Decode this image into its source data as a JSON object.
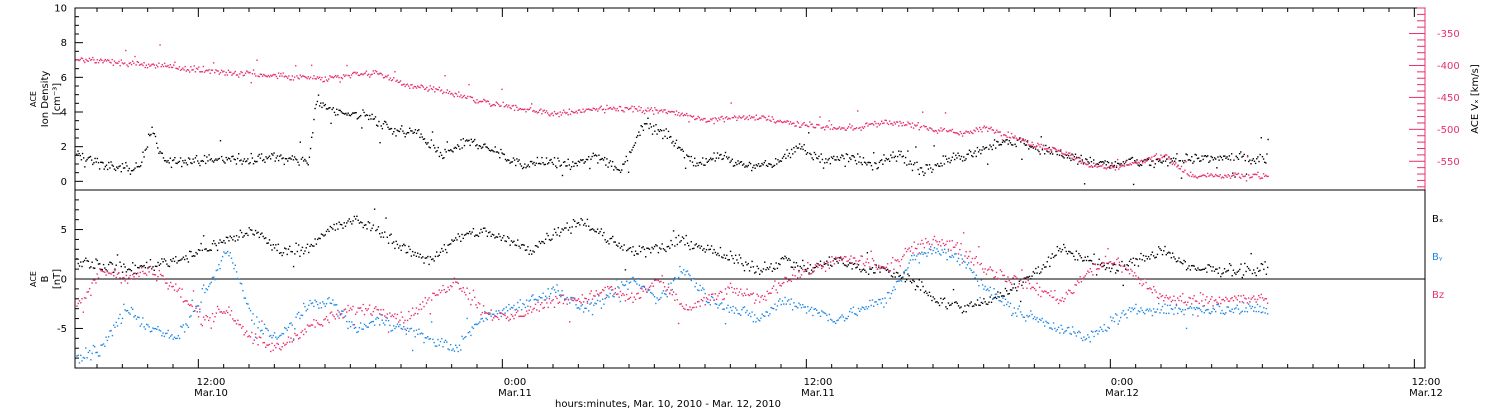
{
  "chart_data": [
    {
      "type": "scatter",
      "panel": "top",
      "ylabel_left": [
        "ACE",
        "Ion Density",
        "[cm⁻³]"
      ],
      "ylabel_right": [
        "ACE",
        "Vₓ",
        "[km/s]"
      ],
      "ylim_left": [
        -0.5,
        10
      ],
      "ylim_right": [
        -595,
        -310
      ],
      "yticks_left": [
        0,
        2,
        4,
        6,
        8,
        10
      ],
      "yticks_right": [
        -350,
        -400,
        -450,
        -500,
        -550
      ],
      "colors": {
        "density": "#000000",
        "vx": "#e8306a"
      },
      "density_anchors": [
        [
          0,
          1.6
        ],
        [
          1.5,
          0.8
        ],
        [
          2.5,
          0.8
        ],
        [
          3,
          3.0
        ],
        [
          3.5,
          1.2
        ],
        [
          7,
          1.3
        ],
        [
          8,
          1.4
        ],
        [
          9.2,
          1.2
        ],
        [
          9.5,
          4.6
        ],
        [
          10.5,
          4.0
        ],
        [
          11.5,
          3.8
        ],
        [
          12.5,
          3.0
        ],
        [
          13.5,
          2.8
        ],
        [
          14.5,
          1.5
        ],
        [
          15.5,
          2.4
        ],
        [
          16.5,
          1.8
        ],
        [
          17.5,
          1.0
        ],
        [
          18.5,
          1.2
        ],
        [
          19.5,
          0.9
        ],
        [
          20.5,
          1.5
        ],
        [
          21.5,
          0.7
        ],
        [
          22.5,
          3.5
        ],
        [
          23.5,
          2.5
        ],
        [
          24.5,
          1.0
        ],
        [
          25.5,
          1.5
        ],
        [
          26.5,
          0.9
        ],
        [
          27.5,
          1.0
        ],
        [
          28.5,
          2.0
        ],
        [
          29.5,
          1.2
        ],
        [
          30.5,
          1.5
        ],
        [
          31.5,
          1.0
        ],
        [
          32.5,
          1.5
        ],
        [
          33.5,
          0.6
        ],
        [
          34.5,
          1.4
        ],
        [
          35.5,
          1.6
        ],
        [
          36.5,
          2.4
        ],
        [
          37.5,
          2.2
        ],
        [
          38.5,
          1.8
        ],
        [
          39.5,
          1.4
        ],
        [
          40.5,
          1.0
        ],
        [
          41.5,
          1.1
        ],
        [
          42.5,
          1.1
        ],
        [
          43.5,
          1.3
        ],
        [
          44,
          1.4
        ]
      ],
      "vx_anchors": [
        [
          0,
          -390
        ],
        [
          2,
          -395
        ],
        [
          4,
          -402
        ],
        [
          6,
          -410
        ],
        [
          8,
          -415
        ],
        [
          10,
          -420
        ],
        [
          11,
          -412
        ],
        [
          12,
          -412
        ],
        [
          13,
          -430
        ],
        [
          14,
          -435
        ],
        [
          15,
          -445
        ],
        [
          16,
          -455
        ],
        [
          17,
          -462
        ],
        [
          18,
          -470
        ],
        [
          19,
          -475
        ],
        [
          20,
          -470
        ],
        [
          21,
          -465
        ],
        [
          22,
          -468
        ],
        [
          23,
          -470
        ],
        [
          24,
          -475
        ],
        [
          25,
          -485
        ],
        [
          26,
          -480
        ],
        [
          27,
          -480
        ],
        [
          28,
          -488
        ],
        [
          29,
          -492
        ],
        [
          30,
          -498
        ],
        [
          31,
          -495
        ],
        [
          32,
          -488
        ],
        [
          33,
          -492
        ],
        [
          34,
          -500
        ],
        [
          35,
          -505
        ],
        [
          36,
          -498
        ],
        [
          37,
          -510
        ],
        [
          38,
          -525
        ],
        [
          39,
          -535
        ],
        [
          40,
          -555
        ],
        [
          41,
          -560
        ],
        [
          42,
          -550
        ],
        [
          43,
          -540
        ],
        [
          44,
          -572
        ]
      ]
    },
    {
      "type": "scatter",
      "panel": "bottom",
      "ylabel_left": [
        "ACE",
        "B",
        "[nT]"
      ],
      "ylim": [
        -9,
        9
      ],
      "yticks": [
        -5,
        0,
        5
      ],
      "zero_line": true,
      "legend_placement": "right",
      "series": [
        {
          "name": "Bₓ",
          "color": "#000000",
          "anchors": [
            [
              0,
              2
            ],
            [
              2,
              1
            ],
            [
              4,
              2
            ],
            [
              6,
              4
            ],
            [
              7,
              5
            ],
            [
              8,
              3
            ],
            [
              9,
              3
            ],
            [
              10,
              5
            ],
            [
              11,
              6
            ],
            [
              12,
              5
            ],
            [
              13,
              3
            ],
            [
              14,
              2
            ],
            [
              15,
              4
            ],
            [
              16,
              5
            ],
            [
              17,
              4
            ],
            [
              18,
              3
            ],
            [
              19,
              5
            ],
            [
              20,
              6
            ],
            [
              21,
              4
            ],
            [
              22,
              3
            ],
            [
              23,
              3
            ],
            [
              24,
              4
            ],
            [
              25,
              3
            ],
            [
              26,
              2
            ],
            [
              27,
              1
            ],
            [
              28,
              2
            ],
            [
              29,
              1
            ],
            [
              30,
              2
            ],
            [
              31,
              1
            ],
            [
              32,
              1
            ],
            [
              33,
              0
            ],
            [
              34,
              -2
            ],
            [
              35,
              -3
            ],
            [
              36,
              -2
            ],
            [
              37,
              -1
            ],
            [
              38,
              1
            ],
            [
              39,
              3
            ],
            [
              40,
              2
            ],
            [
              41,
              1
            ],
            [
              42,
              2
            ],
            [
              43,
              3
            ],
            [
              44,
              1
            ]
          ]
        },
        {
          "name": "Bᵧ",
          "color": "#1e88e5",
          "anchors": [
            [
              0,
              -8
            ],
            [
              1,
              -7
            ],
            [
              2,
              -3
            ],
            [
              3,
              -5
            ],
            [
              4,
              -6
            ],
            [
              5,
              -2
            ],
            [
              6,
              3
            ],
            [
              7,
              -4
            ],
            [
              8,
              -6
            ],
            [
              9,
              -3
            ],
            [
              10,
              -2
            ],
            [
              11,
              -5
            ],
            [
              12,
              -4
            ],
            [
              13,
              -5
            ],
            [
              14,
              -6
            ],
            [
              15,
              -7
            ],
            [
              16,
              -4
            ],
            [
              17,
              -3
            ],
            [
              18,
              -2
            ],
            [
              19,
              -1
            ],
            [
              20,
              -3
            ],
            [
              21,
              -2
            ],
            [
              22,
              0
            ],
            [
              23,
              -2
            ],
            [
              24,
              1
            ],
            [
              25,
              -2
            ],
            [
              26,
              -3
            ],
            [
              27,
              -4
            ],
            [
              28,
              -2
            ],
            [
              29,
              -3
            ],
            [
              30,
              -4
            ],
            [
              31,
              -3
            ],
            [
              32,
              -2
            ],
            [
              33,
              2
            ],
            [
              34,
              3
            ],
            [
              35,
              2
            ],
            [
              36,
              -1
            ],
            [
              37,
              -3
            ],
            [
              38,
              -4
            ],
            [
              39,
              -5
            ],
            [
              40,
              -6
            ],
            [
              41,
              -4
            ],
            [
              42,
              -3
            ],
            [
              43,
              -3
            ],
            [
              44,
              -3
            ]
          ]
        },
        {
          "name": "Bz",
          "color": "#e8306a",
          "anchors": [
            [
              0,
              -3
            ],
            [
              1,
              1
            ],
            [
              2,
              0
            ],
            [
              3,
              1
            ],
            [
              4,
              -1
            ],
            [
              5,
              -4
            ],
            [
              6,
              -3
            ],
            [
              7,
              -6
            ],
            [
              8,
              -7
            ],
            [
              9,
              -5
            ],
            [
              10,
              -4
            ],
            [
              11,
              -3
            ],
            [
              12,
              -3
            ],
            [
              13,
              -4
            ],
            [
              14,
              -2
            ],
            [
              15,
              0
            ],
            [
              16,
              -3
            ],
            [
              17,
              -4
            ],
            [
              18,
              -3
            ],
            [
              19,
              -2
            ],
            [
              20,
              -2
            ],
            [
              21,
              -1
            ],
            [
              22,
              -2
            ],
            [
              23,
              0
            ],
            [
              24,
              -3
            ],
            [
              25,
              -2
            ],
            [
              26,
              -1
            ],
            [
              27,
              -2
            ],
            [
              28,
              0
            ],
            [
              29,
              1
            ],
            [
              30,
              2
            ],
            [
              31,
              2
            ],
            [
              32,
              1
            ],
            [
              33,
              3
            ],
            [
              34,
              4
            ],
            [
              35,
              3
            ],
            [
              36,
              1
            ],
            [
              37,
              0
            ],
            [
              38,
              -1
            ],
            [
              39,
              -2
            ],
            [
              40,
              1
            ],
            [
              41,
              2
            ],
            [
              42,
              0
            ],
            [
              43,
              -2
            ],
            [
              44,
              -2
            ]
          ]
        }
      ]
    }
  ],
  "x_axis": {
    "ticks": [
      {
        "time": "12:00",
        "date": "Mar.10"
      },
      {
        "time": "0:00",
        "date": "Mar.11"
      },
      {
        "time": "12:00",
        "date": "Mar.11"
      },
      {
        "time": "0:00",
        "date": "Mar.12"
      },
      {
        "time": "12:00",
        "date": "Mar.12"
      }
    ],
    "title": "hours:minutes, Mar. 10, 2010 - Mar. 12, 2010"
  }
}
